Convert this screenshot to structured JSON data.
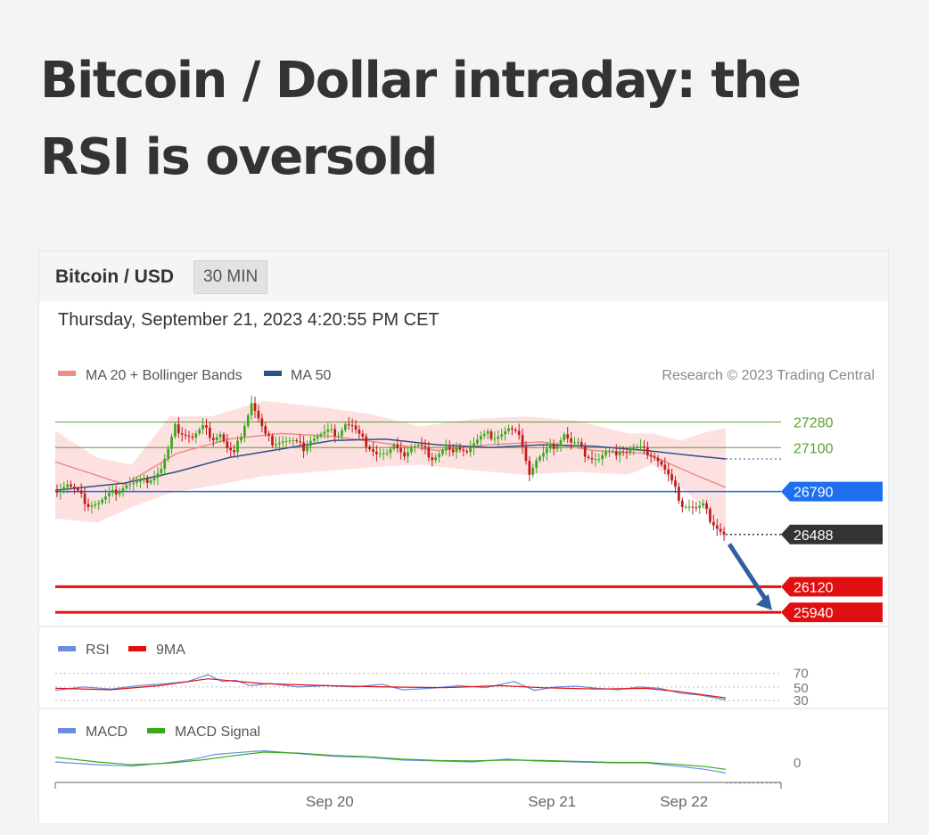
{
  "article": {
    "title": "Bitcoin / Dollar intraday: the RSI is oversold"
  },
  "widget": {
    "instrument": "Bitcoin / USD",
    "timeframe": "30 MIN",
    "timestamp": "Thursday, September 21, 2023 4:20:55 PM CET",
    "copyright": "Research © 2023 Trading Central"
  },
  "colors": {
    "resistance": "#5aa02c",
    "pivot": "#1e6ff0",
    "last": "#333333",
    "support": "#e01010",
    "ma20": "#f28a8a",
    "ma50": "#2e4f8a",
    "bands": "#fde1e1",
    "rsi": "#6b8de0",
    "rsi_ma": "#e01010",
    "macd": "#6b8de0",
    "macd_signal": "#3aa81a",
    "candle_up": "#3aa81a",
    "candle_down": "#c21a1a",
    "arrow": "#2f5f9e"
  },
  "chart_data": [
    {
      "type": "candlestick",
      "legend": [
        {
          "label": "MA 20 + Bollinger Bands",
          "color": "#f28a8a"
        },
        {
          "label": "MA 50",
          "color": "#2e4f8a"
        }
      ],
      "ylim": [
        25840,
        27510
      ],
      "levels": [
        {
          "value": 27280,
          "label": "27280",
          "kind": "resistance"
        },
        {
          "value": 27100,
          "label": "27100",
          "kind": "resistance"
        },
        {
          "value": 26790,
          "label": "26790",
          "kind": "pivot"
        },
        {
          "value": 26488,
          "label": "26488",
          "kind": "last"
        },
        {
          "value": 26120,
          "label": "26120",
          "kind": "support"
        },
        {
          "value": 25940,
          "label": "25940",
          "kind": "support"
        }
      ],
      "projection": {
        "from": 26420,
        "to": 25955,
        "direction": "down"
      },
      "close_path": [
        [
          0,
          26790
        ],
        [
          4,
          26840
        ],
        [
          7,
          26780
        ],
        [
          10,
          26700
        ],
        [
          13,
          26710
        ],
        [
          17,
          26780
        ],
        [
          21,
          26840
        ],
        [
          25,
          26850
        ],
        [
          29,
          26900
        ],
        [
          31,
          26950
        ],
        [
          33,
          27080
        ],
        [
          35,
          27240
        ],
        [
          37,
          27210
        ],
        [
          40,
          27170
        ],
        [
          43,
          27240
        ],
        [
          46,
          27170
        ],
        [
          48,
          27200
        ],
        [
          50,
          27090
        ],
        [
          52,
          27050
        ],
        [
          54,
          27200
        ],
        [
          56,
          27340
        ],
        [
          57,
          27420
        ],
        [
          59,
          27300
        ],
        [
          61,
          27180
        ],
        [
          63,
          27140
        ],
        [
          66,
          27150
        ],
        [
          69,
          27140
        ],
        [
          72,
          27100
        ],
        [
          74,
          27160
        ],
        [
          76,
          27180
        ],
        [
          79,
          27210
        ],
        [
          82,
          27200
        ],
        [
          84,
          27270
        ],
        [
          86,
          27250
        ],
        [
          88,
          27180
        ],
        [
          90,
          27130
        ],
        [
          93,
          27060
        ],
        [
          96,
          27050
        ],
        [
          99,
          27120
        ],
        [
          101,
          27050
        ],
        [
          103,
          27100
        ],
        [
          105,
          27110
        ],
        [
          107,
          27080
        ],
        [
          109,
          27030
        ],
        [
          111,
          27060
        ],
        [
          113,
          27100
        ],
        [
          115,
          27050
        ],
        [
          117,
          27110
        ],
        [
          119,
          27080
        ],
        [
          121,
          27130
        ],
        [
          123,
          27170
        ],
        [
          125,
          27190
        ],
        [
          127,
          27180
        ],
        [
          129,
          27200
        ],
        [
          131,
          27230
        ],
        [
          133,
          27200
        ],
        [
          135,
          27130
        ],
        [
          137,
          26920
        ],
        [
          139,
          27010
        ],
        [
          141,
          27050
        ],
        [
          143,
          27100
        ],
        [
          145,
          27130
        ],
        [
          147,
          27200
        ],
        [
          149,
          27130
        ],
        [
          151,
          27120
        ],
        [
          153,
          27060
        ],
        [
          155,
          27030
        ],
        [
          157,
          27020
        ],
        [
          159,
          27060
        ],
        [
          161,
          27050
        ],
        [
          163,
          27090
        ],
        [
          165,
          27070
        ],
        [
          167,
          27100
        ],
        [
          169,
          27090
        ],
        [
          171,
          27070
        ],
        [
          173,
          27040
        ],
        [
          175,
          26980
        ],
        [
          177,
          26900
        ],
        [
          179,
          26800
        ],
        [
          181,
          26700
        ],
        [
          183,
          26690
        ],
        [
          185,
          26670
        ],
        [
          187,
          26690
        ],
        [
          189,
          26600
        ],
        [
          191,
          26540
        ],
        [
          193,
          26488
        ]
      ],
      "ma20": [
        [
          0,
          27000
        ],
        [
          20,
          26840
        ],
        [
          35,
          27060
        ],
        [
          50,
          27160
        ],
        [
          65,
          27200
        ],
        [
          80,
          27180
        ],
        [
          95,
          27130
        ],
        [
          110,
          27080
        ],
        [
          125,
          27120
        ],
        [
          140,
          27140
        ],
        [
          155,
          27080
        ],
        [
          170,
          27060
        ],
        [
          185,
          26900
        ],
        [
          193,
          26820
        ]
      ],
      "ma50": [
        [
          0,
          26800
        ],
        [
          20,
          26850
        ],
        [
          35,
          26930
        ],
        [
          50,
          27030
        ],
        [
          65,
          27090
        ],
        [
          80,
          27150
        ],
        [
          95,
          27160
        ],
        [
          110,
          27120
        ],
        [
          125,
          27100
        ],
        [
          140,
          27120
        ],
        [
          155,
          27110
        ],
        [
          170,
          27080
        ],
        [
          185,
          27040
        ],
        [
          193,
          27020
        ]
      ],
      "band_upper": [
        [
          0,
          27220
        ],
        [
          12,
          27030
        ],
        [
          22,
          26980
        ],
        [
          33,
          27320
        ],
        [
          45,
          27320
        ],
        [
          60,
          27430
        ],
        [
          75,
          27390
        ],
        [
          90,
          27340
        ],
        [
          105,
          27250
        ],
        [
          120,
          27300
        ],
        [
          135,
          27320
        ],
        [
          150,
          27290
        ],
        [
          165,
          27200
        ],
        [
          172,
          27200
        ],
        [
          180,
          27150
        ],
        [
          186,
          27200
        ],
        [
          193,
          27240
        ]
      ],
      "band_lower": [
        [
          0,
          26600
        ],
        [
          12,
          26570
        ],
        [
          22,
          26680
        ],
        [
          33,
          26780
        ],
        [
          45,
          26830
        ],
        [
          60,
          26900
        ],
        [
          75,
          26930
        ],
        [
          90,
          26960
        ],
        [
          105,
          26980
        ],
        [
          120,
          26940
        ],
        [
          135,
          26910
        ],
        [
          150,
          26930
        ],
        [
          165,
          26910
        ],
        [
          172,
          26980
        ],
        [
          180,
          26820
        ],
        [
          186,
          26700
        ],
        [
          193,
          26450
        ]
      ]
    },
    {
      "type": "line",
      "legend": [
        {
          "label": "RSI",
          "color": "#6b8de0"
        },
        {
          "label": "9MA",
          "color": "#e01010"
        }
      ],
      "ylim": [
        25,
        80
      ],
      "ticks": [
        70,
        50,
        30
      ],
      "series": [
        {
          "name": "RSI",
          "values": [
            [
              0,
              45
            ],
            [
              8,
              50
            ],
            [
              16,
              47
            ],
            [
              24,
              52
            ],
            [
              32,
              55
            ],
            [
              38,
              58
            ],
            [
              44,
              68
            ],
            [
              48,
              58
            ],
            [
              52,
              60
            ],
            [
              56,
              52
            ],
            [
              62,
              55
            ],
            [
              70,
              50
            ],
            [
              78,
              52
            ],
            [
              86,
              50
            ],
            [
              94,
              54
            ],
            [
              100,
              46
            ],
            [
              108,
              48
            ],
            [
              116,
              52
            ],
            [
              124,
              49
            ],
            [
              132,
              58
            ],
            [
              138,
              45
            ],
            [
              144,
              50
            ],
            [
              150,
              51
            ],
            [
              156,
              48
            ],
            [
              162,
              46
            ],
            [
              168,
              50
            ],
            [
              174,
              48
            ],
            [
              180,
              41
            ],
            [
              186,
              38
            ],
            [
              193,
              31
            ]
          ]
        },
        {
          "name": "9MA",
          "values": [
            [
              0,
              48
            ],
            [
              16,
              46
            ],
            [
              30,
              52
            ],
            [
              44,
              62
            ],
            [
              60,
              55
            ],
            [
              78,
              52
            ],
            [
              96,
              50
            ],
            [
              112,
              49
            ],
            [
              128,
              52
            ],
            [
              140,
              49
            ],
            [
              156,
              47
            ],
            [
              170,
              48
            ],
            [
              180,
              43
            ],
            [
              193,
              34
            ]
          ]
        }
      ]
    },
    {
      "type": "line",
      "legend": [
        {
          "label": "MACD",
          "color": "#6b8de0"
        },
        {
          "label": "MACD Signal",
          "color": "#3aa81a"
        }
      ],
      "ylim": [
        -250,
        250
      ],
      "ticks": [
        0
      ],
      "x_ticks": [
        "Sep 20",
        "Sep 21",
        "Sep 22"
      ],
      "series": [
        {
          "name": "MACD",
          "values": [
            [
              0,
              10
            ],
            [
              12,
              -20
            ],
            [
              22,
              -35
            ],
            [
              32,
              0
            ],
            [
              40,
              40
            ],
            [
              46,
              90
            ],
            [
              56,
              120
            ],
            [
              60,
              130
            ],
            [
              70,
              100
            ],
            [
              80,
              70
            ],
            [
              90,
              60
            ],
            [
              100,
              30
            ],
            [
              110,
              20
            ],
            [
              120,
              10
            ],
            [
              130,
              40
            ],
            [
              138,
              20
            ],
            [
              150,
              10
            ],
            [
              160,
              0
            ],
            [
              170,
              0
            ],
            [
              180,
              -40
            ],
            [
              187,
              -70
            ],
            [
              193,
              -110
            ]
          ]
        },
        {
          "name": "MACD Signal",
          "values": [
            [
              0,
              60
            ],
            [
              12,
              10
            ],
            [
              22,
              -20
            ],
            [
              32,
              -5
            ],
            [
              42,
              30
            ],
            [
              50,
              70
            ],
            [
              60,
              115
            ],
            [
              70,
              105
            ],
            [
              80,
              80
            ],
            [
              90,
              65
            ],
            [
              100,
              40
            ],
            [
              110,
              25
            ],
            [
              120,
              20
            ],
            [
              130,
              30
            ],
            [
              140,
              25
            ],
            [
              150,
              15
            ],
            [
              160,
              5
            ],
            [
              170,
              5
            ],
            [
              180,
              -20
            ],
            [
              187,
              -40
            ],
            [
              193,
              -70
            ]
          ]
        }
      ]
    }
  ]
}
